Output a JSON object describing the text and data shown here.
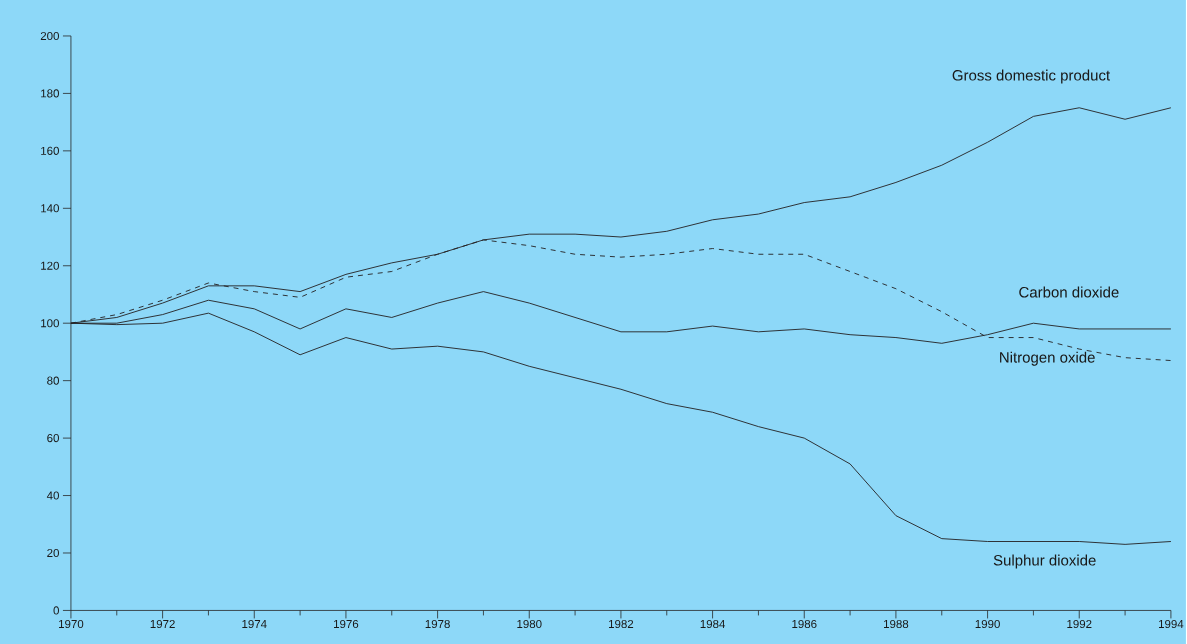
{
  "chart_data": {
    "type": "line",
    "x": [
      1970,
      1971,
      1972,
      1973,
      1974,
      1975,
      1976,
      1977,
      1978,
      1979,
      1980,
      1981,
      1982,
      1983,
      1984,
      1985,
      1986,
      1987,
      1988,
      1989,
      1990,
      1991,
      1992,
      1993,
      1994
    ],
    "series": [
      {
        "name": "Gross domestic product",
        "color": "#231f20",
        "line_style": "solid",
        "values": [
          100,
          102,
          107,
          113,
          113,
          111,
          117,
          121,
          124,
          129,
          131,
          131,
          130,
          132,
          136,
          138,
          142,
          144,
          149,
          155,
          163,
          172,
          175,
          171,
          175
        ]
      },
      {
        "name": "Carbon dioxide",
        "color": "#231f20",
        "line_style": "solid",
        "values": [
          100,
          100,
          103,
          108,
          105,
          98,
          105,
          102,
          107,
          111,
          107,
          102,
          97,
          97,
          99,
          97,
          98,
          96,
          95,
          93,
          96,
          100,
          98,
          98,
          98
        ]
      },
      {
        "name": "Nitrogen oxide",
        "color": "#231f20",
        "line_style": "dashed",
        "values": [
          100,
          103,
          108,
          114,
          111,
          109,
          116,
          118,
          124,
          129,
          127,
          124,
          123,
          124,
          126,
          124,
          124,
          118,
          112,
          104,
          95,
          95,
          91,
          88,
          87
        ]
      },
      {
        "name": "Sulphur dioxide",
        "color": "#231f20",
        "line_style": "solid",
        "values": [
          100,
          99.5,
          100,
          103.5,
          97,
          89,
          95,
          91,
          92,
          90,
          85,
          81,
          77,
          72,
          69,
          64,
          60,
          51,
          33,
          25,
          24,
          24,
          24,
          23,
          24
        ]
      }
    ],
    "xlim": [
      1970,
      1994
    ],
    "xticks": [
      1970,
      1972,
      1974,
      1976,
      1978,
      1980,
      1982,
      1984,
      1986,
      1988,
      1990,
      1992,
      1994
    ],
    "ylim": [
      0,
      200
    ],
    "yticks": [
      0,
      20,
      40,
      60,
      80,
      100,
      120,
      140,
      160,
      180,
      200
    ],
    "grid": false,
    "legend": false,
    "marker": "none"
  }
}
